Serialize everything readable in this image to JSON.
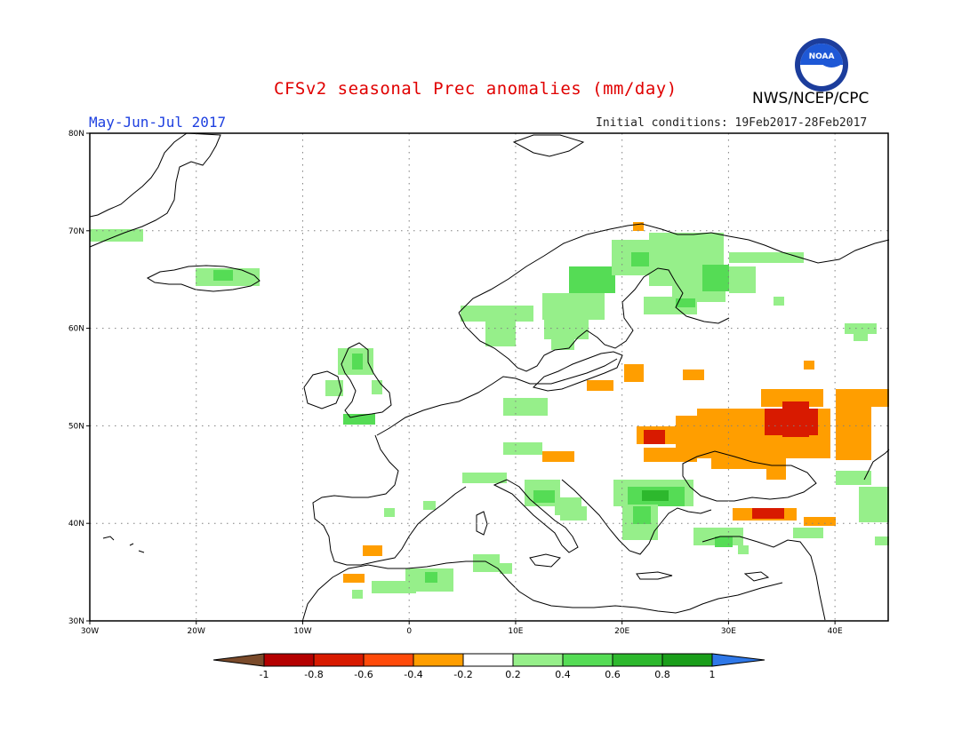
{
  "header": {
    "title": "CFSv2 seasonal Prec anomalies (mm/day)",
    "agency": "NWS/NCEP/CPC",
    "period": "May-Jun-Jul 2017",
    "initial_conditions": "Initial conditions: 19Feb2017-28Feb2017",
    "logo_text": "NOAA"
  },
  "map": {
    "lat_labels": [
      "80N",
      "70N",
      "60N",
      "50N",
      "40N",
      "30N"
    ],
    "lon_labels": [
      "30W",
      "20W",
      "10W",
      "0",
      "10E",
      "20E",
      "30E",
      "40E"
    ],
    "grid": true,
    "extent": {
      "lon": [
        -30,
        45
      ],
      "lat": [
        30,
        80
      ]
    }
  },
  "colorbar": {
    "labels": [
      "-1",
      "-0.8",
      "-0.6",
      "-0.4",
      "-0.2",
      "0.2",
      "0.4",
      "0.6",
      "0.8",
      "1"
    ],
    "colors": [
      "#7a4a2a",
      "#b40000",
      "#d81a00",
      "#ff4a0a",
      "#ff9e00",
      "#ffffff",
      "#96ef8a",
      "#55dc55",
      "#2db82d",
      "#1a9e1a",
      "#2f78e8"
    ]
  },
  "colors": {
    "dry_strong": "#d81a00",
    "dry": "#ff9e00",
    "wet": "#96ef8a",
    "wet_strong": "#55dc55",
    "wet_stronger": "#2db82d",
    "coast": "#000000"
  }
}
